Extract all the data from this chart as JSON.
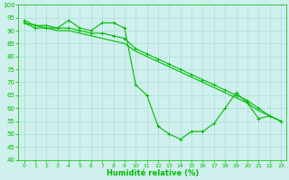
{
  "xlabel": "Humidité relative (%)",
  "xlim": [
    -0.5,
    23.5
  ],
  "ylim": [
    40,
    100
  ],
  "yticks": [
    40,
    45,
    50,
    55,
    60,
    65,
    70,
    75,
    80,
    85,
    90,
    95,
    100
  ],
  "xticks": [
    0,
    1,
    2,
    3,
    4,
    5,
    6,
    7,
    8,
    9,
    10,
    11,
    12,
    13,
    14,
    15,
    16,
    17,
    18,
    19,
    20,
    21,
    22,
    23
  ],
  "background_color": "#cff0ec",
  "grid_color": "#aaddda",
  "line_color": "#00bb00",
  "line1_y": [
    94,
    92,
    92,
    91,
    94,
    91,
    90,
    93,
    93,
    91,
    69,
    65,
    53,
    50,
    48,
    51,
    51,
    54,
    60,
    66,
    62,
    56,
    57,
    55
  ],
  "line2_y": [
    93,
    92,
    91,
    90,
    90,
    89,
    88,
    87,
    86,
    85,
    82,
    80,
    78,
    76,
    74,
    72,
    70,
    68,
    66,
    64,
    62,
    59,
    57,
    55
  ],
  "line3_y": [
    93,
    91,
    91,
    91,
    91,
    90,
    89,
    89,
    88,
    87,
    83,
    81,
    79,
    77,
    75,
    73,
    71,
    69,
    67,
    65,
    63,
    60,
    57,
    55
  ]
}
